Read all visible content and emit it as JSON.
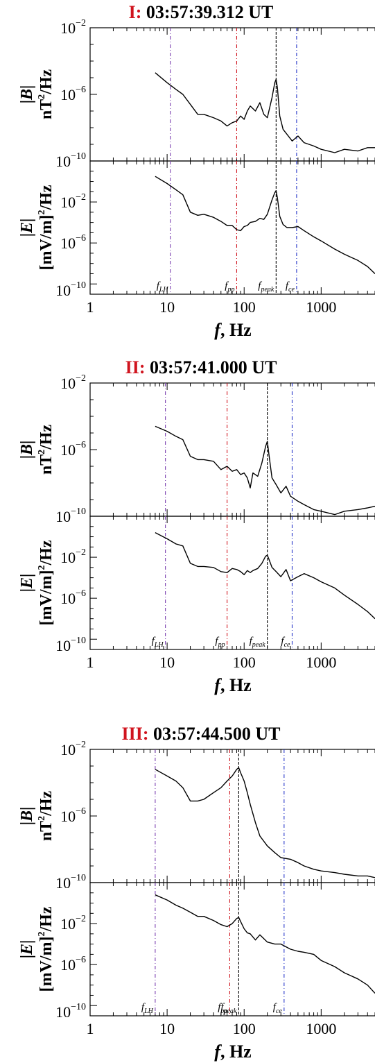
{
  "colors": {
    "panel_id": "#d0141e",
    "trace": "#000000",
    "f_LH_line": "#7a3fb0",
    "f_pp_line": "#d0141e",
    "f_peak_line": "#000000",
    "f_ce_line": "#2433c8"
  },
  "chart_data": [
    {
      "type": "line",
      "panel_id": "I:",
      "time_label": "03:57:39.312 UT",
      "xscale": "log",
      "xlim": [
        1,
        5000
      ],
      "xlabel": {
        "var": "f",
        "unit": ", Hz"
      },
      "xticks": [
        "1",
        "10",
        "100",
        "1000"
      ],
      "markers": [
        {
          "base": "f",
          "sub": "LH",
          "value": 11
        },
        {
          "base": "f",
          "sub": "pp",
          "value": 80
        },
        {
          "base": "f",
          "sub": "peak",
          "value": 260
        },
        {
          "base": "f",
          "sub": "ce",
          "value": 480
        }
      ],
      "panels": [
        {
          "quantity": "B",
          "ylabel_top": "|B|",
          "ylabel_bottom": "nT",
          "ylabel_exp": "2",
          "ylabel_tail": "/Hz",
          "yscale": "log",
          "ylim_exp": [
            -10,
            -2
          ],
          "ytick_exps": [
            -2,
            -6,
            -10
          ],
          "series": [
            {
              "name": "",
              "x": [
                7,
                10,
                13,
                16,
                20,
                25,
                30,
                40,
                50,
                60,
                70,
                80,
                90,
                100,
                110,
                120,
                140,
                160,
                180,
                200,
                230,
                250,
                260,
                270,
                290,
                320,
                360,
                420,
                500,
                600,
                800,
                1000,
                1500,
                2000,
                3000,
                4000,
                5000
              ],
              "y_exp": [
                -4.7,
                -5.3,
                -5.7,
                -6.0,
                -6.6,
                -7.2,
                -7.2,
                -7.4,
                -7.6,
                -7.9,
                -7.7,
                -7.6,
                -7.3,
                -7.5,
                -7.0,
                -6.7,
                -7.0,
                -6.5,
                -7.2,
                -7.4,
                -6.2,
                -5.3,
                -5.1,
                -5.6,
                -7.3,
                -8.1,
                -8.4,
                -8.8,
                -8.5,
                -8.9,
                -9.1,
                -9.3,
                -9.5,
                -9.3,
                -9.4,
                -9.2,
                -9.2
              ]
            }
          ]
        },
        {
          "quantity": "E",
          "ylabel_top": "|E|",
          "ylabel_bottom": "[mV/m]",
          "ylabel_exp": "2",
          "ylabel_tail": "/Hz",
          "yscale": "log",
          "ylim_exp": [
            -11,
            2
          ],
          "ytick_exps": [
            -2,
            -6,
            -10
          ],
          "series": [
            {
              "name": "",
              "x": [
                7,
                10,
                13,
                16,
                20,
                25,
                30,
                40,
                50,
                60,
                70,
                80,
                90,
                100,
                110,
                120,
                140,
                160,
                180,
                200,
                230,
                250,
                260,
                270,
                290,
                320,
                360,
                420,
                500,
                600,
                800,
                1000,
                1500,
                2000,
                3000,
                4000,
                5000
              ],
              "y_exp": [
                0.5,
                -0.2,
                -0.8,
                -1.3,
                -3.0,
                -3.3,
                -3.2,
                -3.5,
                -3.9,
                -4.3,
                -4.3,
                -4.7,
                -4.8,
                -4.4,
                -4.3,
                -4.0,
                -3.9,
                -3.6,
                -3.7,
                -3.2,
                -1.8,
                -1.1,
                -0.9,
                -1.6,
                -3.4,
                -4.2,
                -4.5,
                -4.5,
                -4.4,
                -4.8,
                -5.4,
                -5.8,
                -6.6,
                -7.1,
                -7.7,
                -8.3,
                -9.0
              ]
            }
          ]
        }
      ]
    },
    {
      "type": "line",
      "panel_id": "II:",
      "time_label": "03:57:41.000 UT",
      "xscale": "log",
      "xlim": [
        1,
        5000
      ],
      "xlabel": {
        "var": "f",
        "unit": ", Hz"
      },
      "xticks": [
        "1",
        "10",
        "100",
        "1000"
      ],
      "markers": [
        {
          "base": "f",
          "sub": "LH",
          "value": 9.5
        },
        {
          "base": "f",
          "sub": "pp",
          "value": 60
        },
        {
          "base": "f",
          "sub": "peak",
          "value": 200
        },
        {
          "base": "f",
          "sub": "ce",
          "value": 420
        }
      ],
      "panels": [
        {
          "quantity": "B",
          "ylabel_top": "|B|",
          "ylabel_bottom": "nT",
          "ylabel_exp": "2",
          "ylabel_tail": "/Hz",
          "yscale": "log",
          "ylim_exp": [
            -10,
            -2
          ],
          "ytick_exps": [
            -2,
            -6,
            -10
          ],
          "series": [
            {
              "name": "",
              "x": [
                7,
                10,
                13,
                16,
                20,
                25,
                30,
                40,
                50,
                60,
                70,
                80,
                90,
                100,
                110,
                120,
                130,
                150,
                170,
                190,
                200,
                210,
                230,
                260,
                300,
                350,
                400,
                500,
                600,
                800,
                1000,
                1500,
                2000,
                3000,
                4000,
                5000
              ],
              "y_exp": [
                -4.6,
                -4.9,
                -5.2,
                -5.4,
                -6.4,
                -6.6,
                -6.6,
                -6.7,
                -7.2,
                -7.0,
                -7.3,
                -7.2,
                -7.5,
                -7.4,
                -7.7,
                -8.3,
                -7.4,
                -7.6,
                -6.8,
                -5.8,
                -5.5,
                -6.3,
                -7.7,
                -8.1,
                -8.6,
                -8.2,
                -8.8,
                -9.1,
                -9.3,
                -9.6,
                -9.7,
                -9.9,
                -9.7,
                -9.6,
                -9.5,
                -9.4
              ]
            }
          ]
        },
        {
          "quantity": "E",
          "ylabel_top": "|E|",
          "ylabel_bottom": "[mV/m]",
          "ylabel_exp": "2",
          "ylabel_tail": "/Hz",
          "yscale": "log",
          "ylim_exp": [
            -11,
            2
          ],
          "ytick_exps": [
            -2,
            -6,
            -10
          ],
          "series": [
            {
              "name": "",
              "x": [
                7,
                10,
                13,
                16,
                20,
                25,
                30,
                40,
                50,
                60,
                70,
                80,
                90,
                100,
                110,
                120,
                130,
                150,
                170,
                190,
                200,
                210,
                230,
                260,
                300,
                350,
                400,
                500,
                600,
                800,
                1000,
                1500,
                2000,
                3000,
                4000,
                5000
              ],
              "y_exp": [
                0.4,
                -0.2,
                -0.7,
                -0.9,
                -2.6,
                -2.9,
                -2.9,
                -3.0,
                -3.4,
                -3.5,
                -3.1,
                -3.2,
                -3.4,
                -3.7,
                -3.3,
                -3.5,
                -3.3,
                -3.1,
                -2.6,
                -1.9,
                -1.8,
                -2.2,
                -3.0,
                -3.4,
                -3.9,
                -3.2,
                -4.3,
                -3.9,
                -3.6,
                -4.0,
                -4.4,
                -5.0,
                -5.7,
                -6.6,
                -7.3,
                -8.0
              ]
            }
          ]
        }
      ]
    },
    {
      "type": "line",
      "panel_id": "III:",
      "time_label": "03:57:44.500 UT",
      "xscale": "log",
      "xlim": [
        1,
        5000
      ],
      "xlabel": {
        "var": "f",
        "unit": ", Hz"
      },
      "xticks": [
        "1",
        "10",
        "100",
        "1000"
      ],
      "markers": [
        {
          "base": "f",
          "sub": "LH",
          "value": 7
        },
        {
          "base": "f",
          "sub": "pp",
          "value": 65
        },
        {
          "base": "f",
          "sub": "peak",
          "value": 85
        },
        {
          "base": "f",
          "sub": "ce",
          "value": 330
        }
      ],
      "panels": [
        {
          "quantity": "B",
          "ylabel_top": "|B|",
          "ylabel_bottom": "nT",
          "ylabel_exp": "2",
          "ylabel_tail": "/Hz",
          "yscale": "log",
          "ylim_exp": [
            -10,
            -2
          ],
          "ytick_exps": [
            -2,
            -6,
            -10
          ],
          "series": [
            {
              "name": "",
              "x": [
                7,
                10,
                13,
                16,
                20,
                25,
                30,
                40,
                50,
                60,
                70,
                80,
                85,
                90,
                100,
                110,
                120,
                140,
                160,
                200,
                250,
                300,
                400,
                500,
                600,
                800,
                1000,
                1500,
                2000,
                3000,
                4000,
                5000
              ],
              "y_exp": [
                -3.2,
                -3.6,
                -3.9,
                -4.3,
                -5.1,
                -5.1,
                -5.0,
                -4.6,
                -4.3,
                -3.9,
                -3.6,
                -3.2,
                -3.1,
                -3.4,
                -3.9,
                -4.6,
                -5.3,
                -6.4,
                -7.2,
                -7.8,
                -8.2,
                -8.5,
                -8.6,
                -8.8,
                -9.0,
                -9.2,
                -9.3,
                -9.4,
                -9.5,
                -9.6,
                -9.6,
                -9.7
              ]
            }
          ]
        },
        {
          "quantity": "E",
          "ylabel_top": "|E|",
          "ylabel_bottom": "[mV/m]",
          "ylabel_exp": "2",
          "ylabel_tail": "/Hz",
          "yscale": "log",
          "ylim_exp": [
            -11,
            2
          ],
          "ytick_exps": [
            -2,
            -6,
            -10
          ],
          "series": [
            {
              "name": "",
              "x": [
                7,
                10,
                13,
                16,
                20,
                25,
                30,
                40,
                50,
                60,
                70,
                80,
                85,
                90,
                100,
                110,
                120,
                140,
                160,
                200,
                250,
                300,
                400,
                500,
                600,
                800,
                1000,
                1500,
                2000,
                3000,
                4000,
                5000
              ],
              "y_exp": [
                0.8,
                0.3,
                -0.2,
                -0.5,
                -0.9,
                -1.3,
                -1.3,
                -1.7,
                -2.1,
                -2.3,
                -2.0,
                -1.5,
                -1.4,
                -1.8,
                -2.5,
                -2.9,
                -3.0,
                -3.6,
                -3.1,
                -3.8,
                -4.0,
                -4.0,
                -4.5,
                -4.7,
                -4.8,
                -5.0,
                -5.6,
                -6.2,
                -6.8,
                -7.4,
                -8.0,
                -8.8
              ]
            }
          ]
        }
      ]
    }
  ]
}
